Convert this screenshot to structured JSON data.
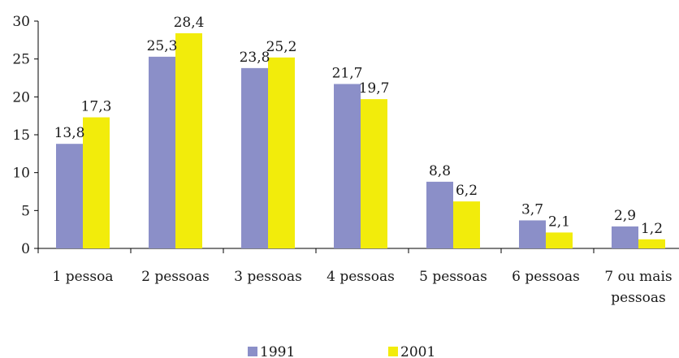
{
  "chart_data": {
    "type": "bar",
    "categories": [
      "1 pessoa",
      "2 pessoas",
      "3 pessoas",
      "4 pessoas",
      "5 pessoas",
      "6 pessoas",
      "7 ou mais pessoas"
    ],
    "category_lines": [
      [
        "1 pessoa"
      ],
      [
        "2 pessoas"
      ],
      [
        "3 pessoas"
      ],
      [
        "4 pessoas"
      ],
      [
        "5 pessoas"
      ],
      [
        "6 pessoas"
      ],
      [
        "7 ou mais",
        "pessoas"
      ]
    ],
    "series": [
      {
        "name": "1991",
        "color": "#8b8fc8",
        "values": [
          13.8,
          25.3,
          23.8,
          21.7,
          8.8,
          3.7,
          2.9
        ],
        "labels": [
          "13,8",
          "25,3",
          "23,8",
          "21,7",
          "8,8",
          "3,7",
          "2,9"
        ]
      },
      {
        "name": "2001",
        "color": "#f2ec0b",
        "values": [
          17.3,
          28.4,
          25.2,
          19.7,
          6.2,
          2.1,
          1.2
        ],
        "labels": [
          "17,3",
          "28,4",
          "25,2",
          "19,7",
          "6,2",
          "2,1",
          "1,2"
        ]
      }
    ],
    "ylim": [
      0,
      30
    ],
    "yticks": [
      0,
      5,
      10,
      15,
      20,
      25,
      30
    ],
    "grid": false,
    "legend_position": "bottom"
  }
}
